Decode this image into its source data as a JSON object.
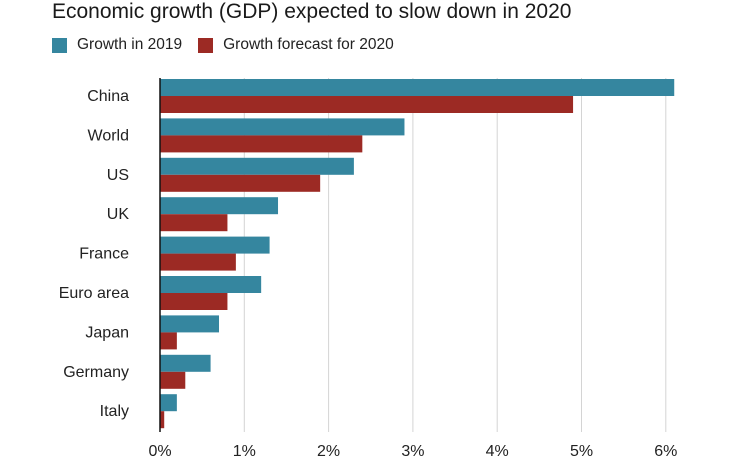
{
  "chart_data": {
    "type": "bar",
    "orientation": "horizontal",
    "title": "Economic growth (GDP) expected to slow down in 2020",
    "categories": [
      "China",
      "World",
      "US",
      "UK",
      "France",
      "Euro area",
      "Japan",
      "Germany",
      "Italy"
    ],
    "series": [
      {
        "name": "Growth in 2019",
        "color": "#35869f",
        "values": [
          6.1,
          2.9,
          2.3,
          1.4,
          1.3,
          1.2,
          0.7,
          0.6,
          0.2
        ]
      },
      {
        "name": "Growth forecast for 2020",
        "color": "#9c2a24",
        "values": [
          4.9,
          2.4,
          1.9,
          0.8,
          0.9,
          0.8,
          0.2,
          0.3,
          0.05
        ]
      }
    ],
    "xlim": [
      0,
      6
    ],
    "xticks": [
      0,
      1,
      2,
      3,
      4,
      5,
      6
    ],
    "xtick_labels": [
      "0%",
      "1%",
      "2%",
      "3%",
      "4%",
      "5%",
      "6%"
    ],
    "grid": true,
    "legend_position": "top-left",
    "xlabel": "",
    "ylabel": ""
  }
}
